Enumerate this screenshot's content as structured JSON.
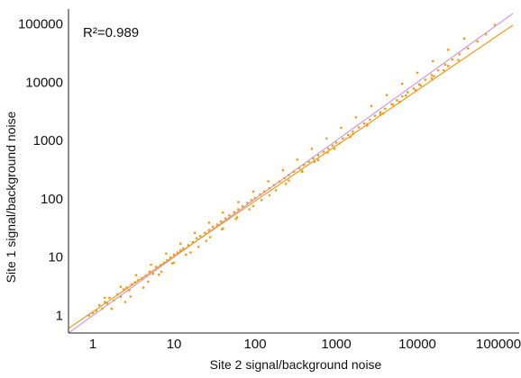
{
  "chart_data": {
    "type": "scatter",
    "scale": "log10",
    "grid": false,
    "xlabel": "Site 2 signal/background noise",
    "ylabel": "Site 1 signal/background noise",
    "annotation": "R²=0.989",
    "xlim": [
      0.5,
      180000
    ],
    "ylim": [
      0.5,
      180000
    ],
    "x_ticks": [
      {
        "value": 1,
        "label": "1"
      },
      {
        "value": 10,
        "label": "10"
      },
      {
        "value": 100,
        "label": "100"
      },
      {
        "value": 1000,
        "label": "1000"
      },
      {
        "value": 10000,
        "label": "10000"
      },
      {
        "value": 100000,
        "label": "100000"
      }
    ],
    "y_ticks": [
      {
        "value": 1,
        "label": "1"
      },
      {
        "value": 10,
        "label": "10"
      },
      {
        "value": 100,
        "label": "100"
      },
      {
        "value": 1000,
        "label": "1000"
      },
      {
        "value": 10000,
        "label": "10000"
      },
      {
        "value": 100000,
        "label": "100000"
      }
    ],
    "colors": {
      "points": "#F39A1B",
      "fit_line": "#F39A1B",
      "identity_line": "#C99BE8",
      "axis": "#222222"
    },
    "lines": [
      {
        "kind": "identity",
        "x": [
          0.5,
          150000
        ],
        "y": [
          0.5,
          150000
        ]
      },
      {
        "kind": "fit",
        "x": [
          0.5,
          150000
        ],
        "y": [
          0.6,
          95000
        ]
      }
    ],
    "points": [
      [
        0.9,
        1.0
      ],
      [
        1.0,
        1.1
      ],
      [
        1.1,
        1.2
      ],
      [
        1.2,
        1.5
      ],
      [
        1.3,
        1.3
      ],
      [
        1.4,
        1.7
      ],
      [
        1.5,
        1.6
      ],
      [
        1.6,
        2.0
      ],
      [
        1.8,
        1.8
      ],
      [
        2.0,
        2.3
      ],
      [
        2.2,
        2.1
      ],
      [
        2.4,
        2.8
      ],
      [
        2.6,
        3.0
      ],
      [
        2.8,
        2.7
      ],
      [
        3.0,
        3.4
      ],
      [
        3.3,
        3.7
      ],
      [
        3.6,
        4.0
      ],
      [
        4.0,
        4.3
      ],
      [
        4.5,
        4.8
      ],
      [
        5.0,
        5.6
      ],
      [
        5.5,
        5.2
      ],
      [
        6.0,
        6.8
      ],
      [
        6.8,
        7.3
      ],
      [
        7.5,
        8.0
      ],
      [
        8.2,
        8.8
      ],
      [
        9.0,
        9.8
      ],
      [
        10,
        11
      ],
      [
        11,
        12
      ],
      [
        12,
        13
      ],
      [
        13,
        14
      ],
      [
        15,
        16
      ],
      [
        17,
        18
      ],
      [
        19,
        21
      ],
      [
        21,
        23
      ],
      [
        24,
        26
      ],
      [
        27,
        29
      ],
      [
        30,
        33
      ],
      [
        34,
        36
      ],
      [
        38,
        41
      ],
      [
        43,
        46
      ],
      [
        48,
        52
      ],
      [
        55,
        59
      ],
      [
        62,
        66
      ],
      [
        70,
        74
      ],
      [
        80,
        85
      ],
      [
        90,
        95
      ],
      [
        100,
        103
      ],
      [
        115,
        118
      ],
      [
        130,
        134
      ],
      [
        150,
        152
      ],
      [
        170,
        172
      ],
      [
        200,
        198
      ],
      [
        230,
        226
      ],
      [
        260,
        255
      ],
      [
        300,
        290
      ],
      [
        350,
        335
      ],
      [
        400,
        380
      ],
      [
        460,
        430
      ],
      [
        520,
        490
      ],
      [
        600,
        560
      ],
      [
        700,
        640
      ],
      [
        800,
        720
      ],
      [
        900,
        820
      ],
      [
        1000,
        920
      ],
      [
        1200,
        1080
      ],
      [
        1400,
        1250
      ],
      [
        1600,
        1420
      ],
      [
        1900,
        1680
      ],
      [
        2200,
        1950
      ],
      [
        2600,
        2280
      ],
      [
        3000,
        2650
      ],
      [
        3500,
        3050
      ],
      [
        4000,
        3500
      ],
      [
        4800,
        4200
      ],
      [
        5600,
        4900
      ],
      [
        6500,
        5700
      ],
      [
        7600,
        6700
      ],
      [
        9000,
        7800
      ],
      [
        10500,
        9200
      ],
      [
        12500,
        11000
      ],
      [
        15000,
        13200
      ],
      [
        18000,
        16000
      ],
      [
        22000,
        20000
      ],
      [
        27000,
        24500
      ],
      [
        33000,
        30000
      ],
      [
        42000,
        38000
      ],
      [
        55000,
        50000
      ],
      [
        70000,
        66000
      ],
      [
        90000,
        96000
      ],
      [
        1.7,
        1.3
      ],
      [
        2.9,
        2.1
      ],
      [
        4.8,
        3.8
      ],
      [
        7.0,
        5.6
      ],
      [
        9.5,
        7.8
      ],
      [
        14,
        11
      ],
      [
        20,
        15
      ],
      [
        28,
        22
      ],
      [
        40,
        31
      ],
      [
        58,
        45
      ],
      [
        85,
        66
      ],
      [
        120,
        95
      ],
      [
        180,
        140
      ],
      [
        260,
        205
      ],
      [
        380,
        300
      ],
      [
        540,
        430
      ],
      [
        780,
        620
      ],
      [
        1100,
        890
      ],
      [
        1600,
        1280
      ],
      [
        2400,
        1900
      ],
      [
        3500,
        2800
      ],
      [
        5000,
        4100
      ],
      [
        7200,
        5900
      ],
      [
        11000,
        8800
      ],
      [
        16000,
        12700
      ],
      [
        24000,
        19000
      ],
      [
        1.4,
        2.0
      ],
      [
        2.2,
        3.1
      ],
      [
        3.4,
        4.9
      ],
      [
        5.2,
        7.4
      ],
      [
        8.0,
        11.5
      ],
      [
        12,
        17
      ],
      [
        18,
        26
      ],
      [
        27,
        39
      ],
      [
        40,
        58
      ],
      [
        62,
        88
      ],
      [
        95,
        133
      ],
      [
        145,
        200
      ],
      [
        220,
        310
      ],
      [
        330,
        470
      ],
      [
        500,
        720
      ],
      [
        760,
        1080
      ],
      [
        1150,
        1650
      ],
      [
        1750,
        2500
      ],
      [
        2700,
        3900
      ],
      [
        4200,
        6000
      ],
      [
        6500,
        9400
      ],
      [
        10000,
        14500
      ],
      [
        15500,
        23000
      ],
      [
        24000,
        36000
      ],
      [
        38000,
        56000
      ],
      [
        2.5,
        1.7
      ],
      [
        4.2,
        3.0
      ],
      [
        6.5,
        5.0
      ],
      [
        10,
        8.0
      ],
      [
        16,
        12
      ],
      [
        25,
        19
      ],
      [
        39,
        30
      ],
      [
        60,
        48
      ],
      [
        95,
        75
      ],
      [
        150,
        115
      ],
      [
        240,
        180
      ],
      [
        380,
        290
      ],
      [
        600,
        460
      ],
      [
        950,
        720
      ],
      [
        1500,
        1150
      ],
      [
        2400,
        1800
      ],
      [
        3800,
        2900
      ],
      [
        6000,
        4600
      ],
      [
        9500,
        7300
      ],
      [
        15000,
        11500
      ],
      [
        21000,
        16000
      ],
      [
        32000,
        24000
      ]
    ]
  }
}
